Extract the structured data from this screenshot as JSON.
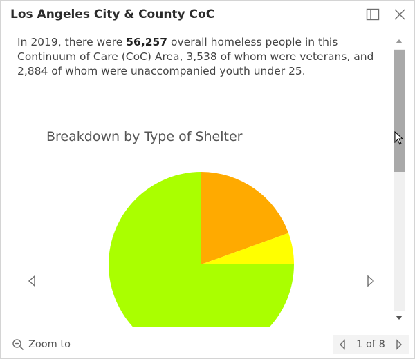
{
  "header": {
    "title": "Los Angeles City & County CoC"
  },
  "description": {
    "prefix": "In 2019, there were ",
    "count": "56,257",
    "suffix": " overall homeless people in this Continuum of Care (CoC) Area, 3,538 of whom were veterans, and 2,884 of whom were unaccompanied youth under 25."
  },
  "chart_title": "Breakdown by Type of Shelter",
  "chart_data": {
    "type": "pie",
    "title": "Breakdown by Type of Shelter",
    "slices": [
      {
        "value": 19.5,
        "color": "#ffaa00"
      },
      {
        "value": 5.5,
        "color": "#ffff00"
      },
      {
        "value": 75.0,
        "color": "#aaff00"
      }
    ]
  },
  "footer": {
    "zoom_label": "Zoom to",
    "pager_text": "1 of 8"
  },
  "colors": {
    "accent": "#aaff00",
    "scroll_thumb": "#a9a9a9"
  },
  "icons": {
    "dock": "dock-icon",
    "close": "close-icon",
    "prev": "chevron-left-icon",
    "next": "chevron-right-icon",
    "zoom": "magnifier-plus-icon"
  }
}
